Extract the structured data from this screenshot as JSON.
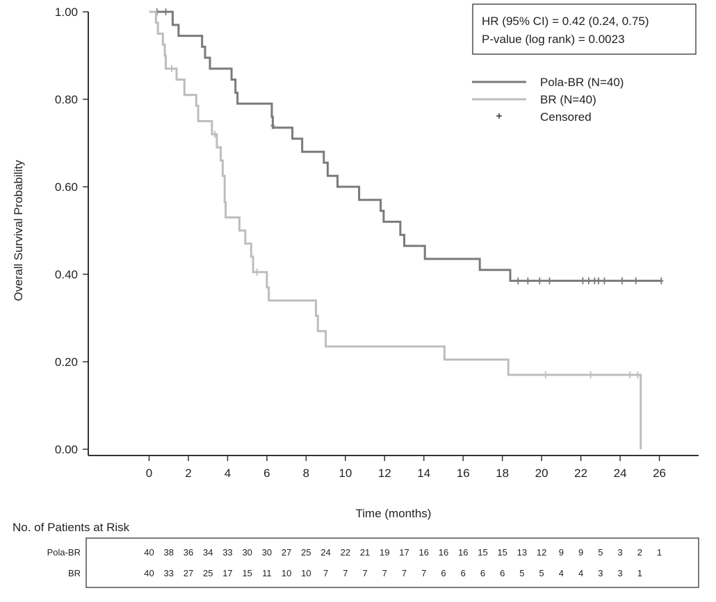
{
  "chart_data": {
    "type": "line",
    "xlabel": "Time (months)",
    "ylabel": "Overall Survival Probability",
    "xlim": [
      -3.1,
      28
    ],
    "ylim": [
      0,
      1
    ],
    "xticks": [
      "0",
      "2",
      "4",
      "6",
      "8",
      "10",
      "12",
      "14",
      "16",
      "18",
      "20",
      "22",
      "24",
      "26"
    ],
    "yticks": [
      "0.00",
      "0.20",
      "0.40",
      "0.60",
      "0.80",
      "1.00"
    ],
    "annotation": [
      "HR (95% CI) = 0.42 (0.24, 0.75)",
      "P-value (log rank) = 0.0023"
    ],
    "legend": {
      "position": "top-right",
      "censored_label": "Censored"
    },
    "series": [
      {
        "name": "Pola-BR (N=40)",
        "color": "#7a7a7a",
        "steps": [
          [
            0,
            1.0
          ],
          [
            1.0,
            1.0
          ],
          [
            1.2,
            0.97
          ],
          [
            1.5,
            0.945
          ],
          [
            2.6,
            0.945
          ],
          [
            2.7,
            0.92
          ],
          [
            2.85,
            0.895
          ],
          [
            3.1,
            0.87
          ],
          [
            4.05,
            0.87
          ],
          [
            4.2,
            0.845
          ],
          [
            4.4,
            0.815
          ],
          [
            4.5,
            0.79
          ],
          [
            6.2,
            0.79
          ],
          [
            6.25,
            0.76
          ],
          [
            6.3,
            0.735
          ],
          [
            7.1,
            0.735
          ],
          [
            7.3,
            0.71
          ],
          [
            7.8,
            0.68
          ],
          [
            8.8,
            0.68
          ],
          [
            8.9,
            0.655
          ],
          [
            9.1,
            0.625
          ],
          [
            9.6,
            0.6
          ],
          [
            10.5,
            0.6
          ],
          [
            10.7,
            0.57
          ],
          [
            11.7,
            0.57
          ],
          [
            11.8,
            0.545
          ],
          [
            11.95,
            0.52
          ],
          [
            12.6,
            0.52
          ],
          [
            12.8,
            0.49
          ],
          [
            13.0,
            0.465
          ],
          [
            14.0,
            0.465
          ],
          [
            14.05,
            0.435
          ],
          [
            16.8,
            0.435
          ],
          [
            16.85,
            0.41
          ],
          [
            18.35,
            0.41
          ],
          [
            18.4,
            0.385
          ],
          [
            26.1,
            0.385
          ]
        ],
        "censored": [
          [
            0.4,
            1.0
          ],
          [
            0.85,
            1.0
          ],
          [
            6.3,
            0.74
          ],
          [
            18.8,
            0.385
          ],
          [
            19.3,
            0.385
          ],
          [
            19.9,
            0.385
          ],
          [
            20.4,
            0.385
          ],
          [
            22.1,
            0.385
          ],
          [
            22.4,
            0.385
          ],
          [
            22.7,
            0.385
          ],
          [
            22.9,
            0.385
          ],
          [
            23.2,
            0.385
          ],
          [
            24.1,
            0.385
          ],
          [
            24.8,
            0.385
          ],
          [
            26.1,
            0.385
          ]
        ]
      },
      {
        "name": "BR (N=40)",
        "color": "#bdbdbd",
        "steps": [
          [
            0,
            1.0
          ],
          [
            0.3,
            1.0
          ],
          [
            0.35,
            0.975
          ],
          [
            0.45,
            0.95
          ],
          [
            0.7,
            0.925
          ],
          [
            0.8,
            0.9
          ],
          [
            0.85,
            0.87
          ],
          [
            1.3,
            0.87
          ],
          [
            1.4,
            0.845
          ],
          [
            1.8,
            0.81
          ],
          [
            2.3,
            0.81
          ],
          [
            2.4,
            0.785
          ],
          [
            2.5,
            0.75
          ],
          [
            3.1,
            0.75
          ],
          [
            3.2,
            0.72
          ],
          [
            3.45,
            0.69
          ],
          [
            3.65,
            0.66
          ],
          [
            3.75,
            0.625
          ],
          [
            3.85,
            0.565
          ],
          [
            3.9,
            0.53
          ],
          [
            4.5,
            0.53
          ],
          [
            4.6,
            0.5
          ],
          [
            4.9,
            0.47
          ],
          [
            5.2,
            0.44
          ],
          [
            5.3,
            0.405
          ],
          [
            5.9,
            0.405
          ],
          [
            6.0,
            0.37
          ],
          [
            6.1,
            0.34
          ],
          [
            8.4,
            0.34
          ],
          [
            8.5,
            0.305
          ],
          [
            8.6,
            0.27
          ],
          [
            9.0,
            0.235
          ],
          [
            15.0,
            0.235
          ],
          [
            15.05,
            0.205
          ],
          [
            18.25,
            0.205
          ],
          [
            18.3,
            0.17
          ],
          [
            25.0,
            0.17
          ],
          [
            25.05,
            0.0
          ]
        ],
        "censored": [
          [
            1.15,
            0.87
          ],
          [
            3.35,
            0.72
          ],
          [
            5.5,
            0.405
          ],
          [
            20.2,
            0.17
          ],
          [
            22.5,
            0.17
          ],
          [
            24.5,
            0.17
          ],
          [
            24.9,
            0.17
          ]
        ]
      }
    ],
    "at_risk": {
      "title": "No. of Patients at Risk",
      "rows": [
        {
          "label": "Pola-BR",
          "values": [
            "40",
            "38",
            "36",
            "34",
            "33",
            "30",
            "30",
            "27",
            "25",
            "24",
            "22",
            "21",
            "19",
            "17",
            "16",
            "16",
            "16",
            "15",
            "15",
            "13",
            "12",
            "9",
            "9",
            "5",
            "3",
            "2",
            "1"
          ]
        },
        {
          "label": "BR",
          "values": [
            "40",
            "33",
            "27",
            "25",
            "17",
            "15",
            "11",
            "10",
            "10",
            "7",
            "7",
            "7",
            "7",
            "7",
            "7",
            "6",
            "6",
            "6",
            "6",
            "5",
            "5",
            "4",
            "4",
            "3",
            "3",
            "1",
            ""
          ]
        }
      ]
    }
  }
}
